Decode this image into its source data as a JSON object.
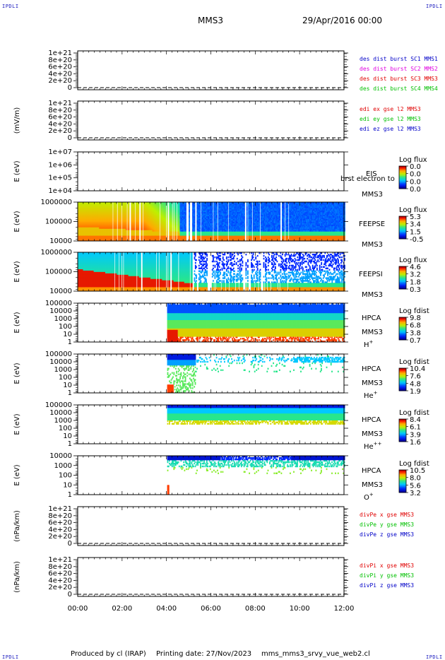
{
  "header": {
    "corner_logo": "IPDLI",
    "title": "MMS3",
    "datetime": "29/Apr/2016 00:00"
  },
  "footer": {
    "produced_by": "Produced by cl (IRAP)",
    "printing_date": "Printing date: 27/Nov/2023",
    "script_name": "mms_mms3_srvy_vue_web2.cl"
  },
  "time_axis": {
    "tick_labels": [
      "00:00",
      "02:00",
      "04:00",
      "06:00",
      "08:00",
      "10:00",
      "12:00"
    ],
    "range_hours": [
      0,
      12
    ]
  },
  "colors": {
    "black": "#000000",
    "red": "#e00000",
    "green": "#00c000",
    "blue": "#0000c8",
    "magenta": "#e000e0",
    "corner": "#2020c0"
  },
  "chart_data": [
    {
      "type": "line",
      "ylabel": "",
      "ticks": [
        "1e+21",
        "8e+20",
        "6e+20",
        "4e+20",
        "2e+20",
        "0"
      ],
      "ylim": [
        0,
        1.2e+21
      ],
      "series": [
        {
          "name": "des dist burst SC1 MMS1",
          "color": "#0000c8",
          "values": []
        },
        {
          "name": "des dist burst SC2 MMS2",
          "color": "#e000e0",
          "values": []
        },
        {
          "name": "des dist burst SC3 MMS3",
          "color": "#e00000",
          "values": []
        },
        {
          "name": "des dist burst SC4 MMS4",
          "color": "#00c000",
          "values": []
        }
      ],
      "zero_line": "dashed"
    },
    {
      "type": "line",
      "ylabel": "(mV/m)",
      "ticks": [
        "1e+21",
        "8e+20",
        "6e+20",
        "4e+20",
        "2e+20",
        "0"
      ],
      "ylim": [
        0,
        1.2e+21
      ],
      "series": [
        {
          "name": "edi ex gse l2 MMS3",
          "color": "#e00000",
          "values": []
        },
        {
          "name": "edi ey gse l2 MMS3",
          "color": "#00c000",
          "values": []
        },
        {
          "name": "edi ez gse l2 MMS3",
          "color": "#0000c8",
          "values": []
        }
      ],
      "zero_line": "dashed"
    },
    {
      "type": "heatmap",
      "ylabel": "E (eV)",
      "scale": "log",
      "ticks": [
        "1e+07",
        "1e+06",
        "1e+05",
        "1e+04"
      ],
      "instrument": "EIS",
      "instrument_note": "brst electron to",
      "spacecraft": "MMS3",
      "colorbar_title": "Log flux",
      "colorbar_ticks": [
        "0.0",
        "0.0",
        "0.0",
        "0.0"
      ],
      "coverage_hours": []
    },
    {
      "type": "heatmap",
      "ylabel": "E (eV)",
      "scale": "log",
      "ticks": [
        "1000000",
        "100000",
        "10000"
      ],
      "instrument": "FEEPSE",
      "spacecraft": "MMS3",
      "colorbar_title": "Log flux",
      "colorbar_ticks": [
        "5.3",
        "3.4",
        "1.5",
        "-0.5"
      ],
      "coverage_hours": [
        0,
        12
      ]
    },
    {
      "type": "heatmap",
      "ylabel": "E (eV)",
      "scale": "log",
      "ticks": [
        "1000000",
        "100000",
        "10000"
      ],
      "instrument": "FEEPSI",
      "spacecraft": "MMS3",
      "colorbar_title": "Log flux",
      "colorbar_ticks": [
        "4.6",
        "3.2",
        "1.8",
        "0.3"
      ],
      "coverage_hours": [
        0,
        12
      ]
    },
    {
      "type": "heatmap",
      "ylabel": "E (eV)",
      "scale": "log",
      "ticks": [
        "100000",
        "10000",
        "1000",
        "100",
        "10",
        "1"
      ],
      "instrument": "HPCA",
      "spacecraft": "MMS3",
      "species": "H",
      "species_sup": "+",
      "colorbar_title": "Log fdist",
      "colorbar_ticks": [
        "9.8",
        "6.8",
        "3.8",
        "0.7"
      ],
      "coverage_hours": [
        3.95,
        12
      ]
    },
    {
      "type": "heatmap",
      "ylabel": "E (eV)",
      "scale": "log",
      "ticks": [
        "100000",
        "10000",
        "1000",
        "100",
        "10",
        "1"
      ],
      "instrument": "HPCA",
      "spacecraft": "MMS3",
      "species": "He",
      "species_sup": "+",
      "colorbar_title": "Log fdist",
      "colorbar_ticks": [
        "10.4",
        "7.6",
        "4.8",
        "1.9"
      ],
      "coverage_hours": [
        3.95,
        12
      ]
    },
    {
      "type": "heatmap",
      "ylabel": "E (eV)",
      "scale": "log",
      "ticks": [
        "100000",
        "10000",
        "1000",
        "100",
        "10",
        "1"
      ],
      "instrument": "HPCA",
      "spacecraft": "MMS3",
      "species": "He",
      "species_sup": "++",
      "colorbar_title": "Log fdist",
      "colorbar_ticks": [
        "8.4",
        "6.1",
        "3.9",
        "1.6"
      ],
      "coverage_hours": [
        3.95,
        12
      ]
    },
    {
      "type": "heatmap",
      "ylabel": "E (eV)",
      "scale": "log",
      "ticks": [
        "10000",
        "1000",
        "100",
        "10",
        "1"
      ],
      "instrument": "HPCA",
      "spacecraft": "MMS3",
      "species": "O",
      "species_sup": "+",
      "colorbar_title": "Log fdist",
      "colorbar_ticks": [
        "10.5",
        "8.0",
        "5.6",
        "3.2"
      ],
      "coverage_hours": [
        3.95,
        12
      ]
    },
    {
      "type": "line",
      "ylabel": "(nPa/km)",
      "ticks": [
        "1e+21",
        "8e+20",
        "6e+20",
        "4e+20",
        "2e+20",
        "0"
      ],
      "ylim": [
        0,
        1.2e+21
      ],
      "series": [
        {
          "name": "divPe x gse MMS3",
          "color": "#e00000",
          "values": []
        },
        {
          "name": "divPe y gse MMS3",
          "color": "#00c000",
          "values": []
        },
        {
          "name": "divPe z gse MMS3",
          "color": "#0000c8",
          "values": []
        }
      ],
      "zero_line": "dashed"
    },
    {
      "type": "line",
      "ylabel": "(nPa/km)",
      "ticks": [
        "1e+21",
        "8e+20",
        "6e+20",
        "4e+20",
        "2e+20",
        "0"
      ],
      "ylim": [
        0,
        1.2e+21
      ],
      "series": [
        {
          "name": "divPi x gse MMS3",
          "color": "#e00000",
          "values": []
        },
        {
          "name": "divPi y gse MMS3",
          "color": "#00c000",
          "values": []
        },
        {
          "name": "divPi z gse MMS3",
          "color": "#0000c8",
          "values": []
        }
      ],
      "zero_line": "dashed"
    }
  ]
}
